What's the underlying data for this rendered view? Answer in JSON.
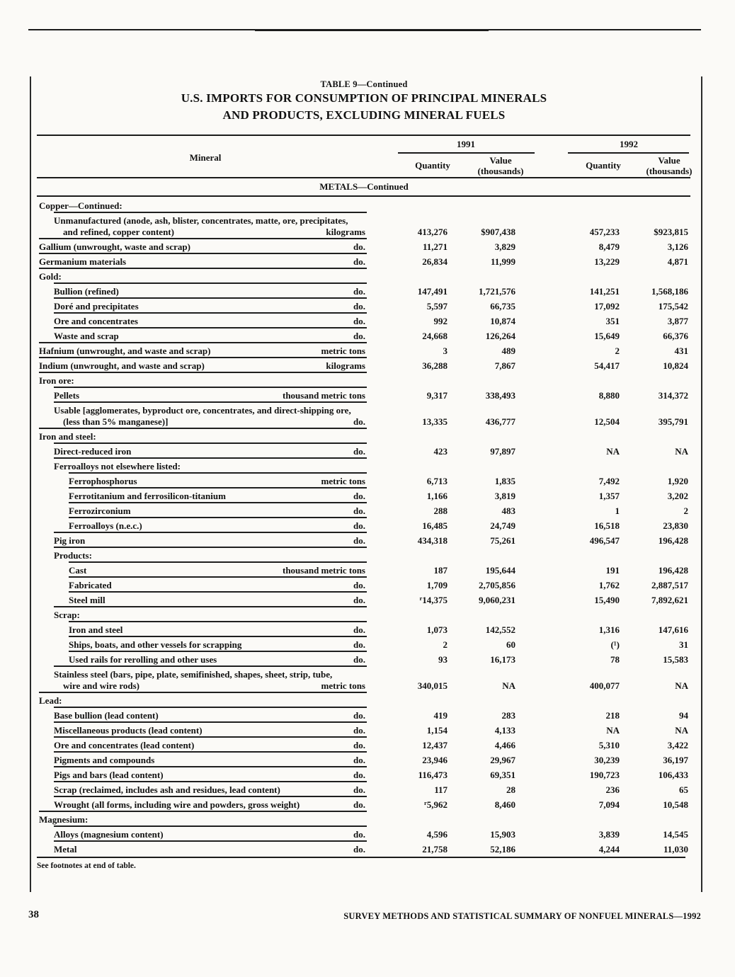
{
  "page": {
    "title_small": "TABLE 9—Continued",
    "title1": "U.S. IMPORTS FOR CONSUMPTION OF PRINCIPAL MINERALS",
    "title2": "AND PRODUCTS, EXCLUDING MINERAL FUELS",
    "footnote_table": "See footnotes at end of table.",
    "page_number": "38",
    "footer": "SURVEY METHODS AND STATISTICAL SUMMARY OF NONFUEL MINERALS—1992"
  },
  "table": {
    "mineral_header": "Mineral",
    "year1": "1991",
    "year2": "1992",
    "quantity_header": "Quantity",
    "value_header_line1": "Value",
    "value_header_line2": "(thousands)",
    "band": "METALS—Continued",
    "rows": [
      {
        "type": "section",
        "indent": 0,
        "label": "Copper—Continued:"
      },
      {
        "type": "data",
        "indent": 1,
        "label": "Unmanufactured (anode, ash, blister, concentrates, matte, ore, precipitates,",
        "label2": "and refined, copper content)",
        "unit": "kilograms",
        "q1": "413,276",
        "v1": "$907,438",
        "q2": "457,233",
        "v2": "$923,815"
      },
      {
        "type": "data",
        "indent": 0,
        "label": "Gallium (unwrought, waste and scrap)",
        "unit": "do.",
        "q1": "11,271",
        "v1": "3,829",
        "q2": "8,479",
        "v2": "3,126"
      },
      {
        "type": "data",
        "indent": 0,
        "label": "Germanium materials",
        "unit": "do.",
        "q1": "26,834",
        "v1": "11,999",
        "q2": "13,229",
        "v2": "4,871"
      },
      {
        "type": "section",
        "indent": 0,
        "label": "Gold:"
      },
      {
        "type": "data",
        "indent": 1,
        "label": "Bullion (refined)",
        "unit": "do.",
        "q1": "147,491",
        "v1": "1,721,576",
        "q2": "141,251",
        "v2": "1,568,186"
      },
      {
        "type": "data",
        "indent": 1,
        "label": "Doré and precipitates",
        "unit": "do.",
        "q1": "5,597",
        "v1": "66,735",
        "q2": "17,092",
        "v2": "175,542"
      },
      {
        "type": "data",
        "indent": 1,
        "label": "Ore and concentrates",
        "unit": "do.",
        "q1": "992",
        "v1": "10,874",
        "q2": "351",
        "v2": "3,877"
      },
      {
        "type": "data",
        "indent": 1,
        "label": "Waste and scrap",
        "unit": "do.",
        "q1": "24,668",
        "v1": "126,264",
        "q2": "15,649",
        "v2": "66,376"
      },
      {
        "type": "data",
        "indent": 0,
        "label": "Hafnium (unwrought, and waste and scrap)",
        "unit": "metric tons",
        "q1": "3",
        "v1": "489",
        "q2": "2",
        "v2": "431"
      },
      {
        "type": "data",
        "indent": 0,
        "label": "Indium (unwrought, and waste and scrap)",
        "unit": "kilograms",
        "q1": "36,288",
        "v1": "7,867",
        "q2": "54,417",
        "v2": "10,824"
      },
      {
        "type": "section",
        "indent": 0,
        "label": "Iron ore:"
      },
      {
        "type": "data",
        "indent": 1,
        "label": "Pellets",
        "unit": "thousand metric tons",
        "q1": "9,317",
        "v1": "338,493",
        "q2": "8,880",
        "v2": "314,372"
      },
      {
        "type": "data",
        "indent": 1,
        "label": "Usable [agglomerates, byproduct ore, concentrates, and direct-shipping ore,",
        "label2": "(less than 5% manganese)]",
        "unit": "do.",
        "q1": "13,335",
        "v1": "436,777",
        "q2": "12,504",
        "v2": "395,791"
      },
      {
        "type": "section",
        "indent": 0,
        "label": "Iron and steel:"
      },
      {
        "type": "data",
        "indent": 1,
        "label": "Direct-reduced iron",
        "unit": "do.",
        "q1": "423",
        "v1": "97,897",
        "q2": "NA",
        "v2": "NA"
      },
      {
        "type": "section",
        "indent": 1,
        "label": "Ferroalloys not elsewhere listed:"
      },
      {
        "type": "data",
        "indent": 2,
        "label": "Ferrophosphorus",
        "unit": "metric tons",
        "q1": "6,713",
        "v1": "1,835",
        "q2": "7,492",
        "v2": "1,920"
      },
      {
        "type": "data",
        "indent": 2,
        "label": "Ferrotitanium and ferrosilicon-titanium",
        "unit": "do.",
        "q1": "1,166",
        "v1": "3,819",
        "q2": "1,357",
        "v2": "3,202"
      },
      {
        "type": "data",
        "indent": 2,
        "label": "Ferrozirconium",
        "unit": "do.",
        "q1": "288",
        "v1": "483",
        "q2": "1",
        "v2": "2"
      },
      {
        "type": "data",
        "indent": 2,
        "label": "Ferroalloys (n.e.c.)",
        "unit": "do.",
        "q1": "16,485",
        "v1": "24,749",
        "q2": "16,518",
        "v2": "23,830"
      },
      {
        "type": "data",
        "indent": 1,
        "label": "Pig iron",
        "unit": "do.",
        "q1": "434,318",
        "v1": "75,261",
        "q2": "496,547",
        "v2": "196,428"
      },
      {
        "type": "section",
        "indent": 1,
        "label": "Products:"
      },
      {
        "type": "data",
        "indent": 2,
        "label": "Cast",
        "unit": "thousand metric tons",
        "q1": "187",
        "v1": "195,644",
        "q2": "191",
        "v2": "196,428"
      },
      {
        "type": "data",
        "indent": 2,
        "label": "Fabricated",
        "unit": "do.",
        "q1": "1,709",
        "v1": "2,705,856",
        "q2": "1,762",
        "v2": "2,887,517"
      },
      {
        "type": "data",
        "indent": 2,
        "label": "Steel mill",
        "unit": "do.",
        "q1": "14,375",
        "q1sup": "r",
        "v1": "9,060,231",
        "q2": "15,490",
        "v2": "7,892,621"
      },
      {
        "type": "section",
        "indent": 1,
        "label": "Scrap:"
      },
      {
        "type": "data",
        "indent": 2,
        "label": "Iron and steel",
        "unit": "do.",
        "q1": "1,073",
        "v1": "142,552",
        "q2": "1,316",
        "v2": "147,616"
      },
      {
        "type": "data",
        "indent": 2,
        "label": "Ships, boats, and other vessels for scrapping",
        "unit": "do.",
        "q1": "2",
        "v1": "60",
        "q2": "(¹)",
        "v2": "31"
      },
      {
        "type": "data",
        "indent": 2,
        "label": "Used rails for rerolling and other uses",
        "unit": "do.",
        "q1": "93",
        "v1": "16,173",
        "q2": "78",
        "v2": "15,583"
      },
      {
        "type": "data",
        "indent": 1,
        "label": "Stainless steel (bars, pipe, plate, semifinished, shapes, sheet, strip, tube,",
        "label2": "wire and wire rods)",
        "unit": "metric tons",
        "q1": "340,015",
        "v1": "NA",
        "q2": "400,077",
        "v2": "NA"
      },
      {
        "type": "section",
        "indent": 0,
        "label": "Lead:"
      },
      {
        "type": "data",
        "indent": 1,
        "label": "Base bullion (lead content)",
        "unit": "do.",
        "q1": "419",
        "v1": "283",
        "q2": "218",
        "v2": "94"
      },
      {
        "type": "data",
        "indent": 1,
        "label": "Miscellaneous products (lead content)",
        "unit": "do.",
        "q1": "1,154",
        "v1": "4,133",
        "q2": "NA",
        "v2": "NA"
      },
      {
        "type": "data",
        "indent": 1,
        "label": "Ore and concentrates (lead content)",
        "unit": "do.",
        "q1": "12,437",
        "v1": "4,466",
        "q2": "5,310",
        "v2": "3,422"
      },
      {
        "type": "data",
        "indent": 1,
        "label": "Pigments and compounds",
        "unit": "do.",
        "q1": "23,946",
        "v1": "29,967",
        "q2": "30,239",
        "v2": "36,197"
      },
      {
        "type": "data",
        "indent": 1,
        "label": "Pigs and bars (lead content)",
        "unit": "do.",
        "q1": "116,473",
        "v1": "69,351",
        "q2": "190,723",
        "v2": "106,433"
      },
      {
        "type": "data",
        "indent": 1,
        "label": "Scrap (reclaimed, includes ash and residues, lead content)",
        "unit": "do.",
        "q1": "117",
        "v1": "28",
        "q2": "236",
        "v2": "65"
      },
      {
        "type": "data",
        "indent": 1,
        "label": "Wrought (all forms, including wire and powders, gross weight)",
        "unit": "do.",
        "q1": "5,962",
        "q1sup": "r",
        "v1": "8,460",
        "q2": "7,094",
        "v2": "10,548"
      },
      {
        "type": "section",
        "indent": 0,
        "label": "Magnesium:"
      },
      {
        "type": "data",
        "indent": 1,
        "label": "Alloys (magnesium content)",
        "unit": "do.",
        "q1": "4,596",
        "v1": "15,903",
        "q2": "3,839",
        "v2": "14,545"
      },
      {
        "type": "data",
        "indent": 1,
        "label": "Metal",
        "unit": "do.",
        "q1": "21,758",
        "v1": "52,186",
        "q2": "4,244",
        "v2": "11,030"
      }
    ]
  }
}
